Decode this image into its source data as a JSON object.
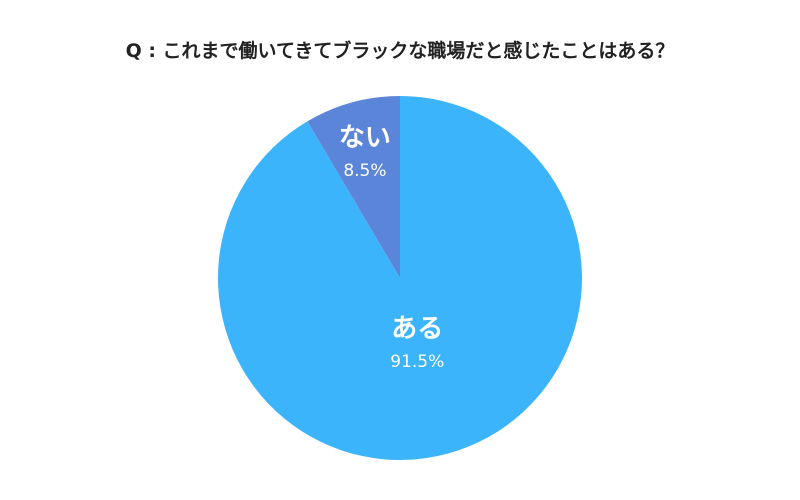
{
  "chart_data": {
    "type": "pie",
    "title": "Q : これまで働いてきてブラックな職場だと感じたことはある？",
    "slices": [
      {
        "label": "ある",
        "value": 91.5,
        "display": "91.5%",
        "color": "#3cb4fc"
      },
      {
        "label": "ない",
        "value": 8.5,
        "display": "8.5%",
        "color": "#5b85d8"
      }
    ],
    "start_angle": "12 o'clock",
    "direction": "clockwise",
    "legend": "none"
  }
}
